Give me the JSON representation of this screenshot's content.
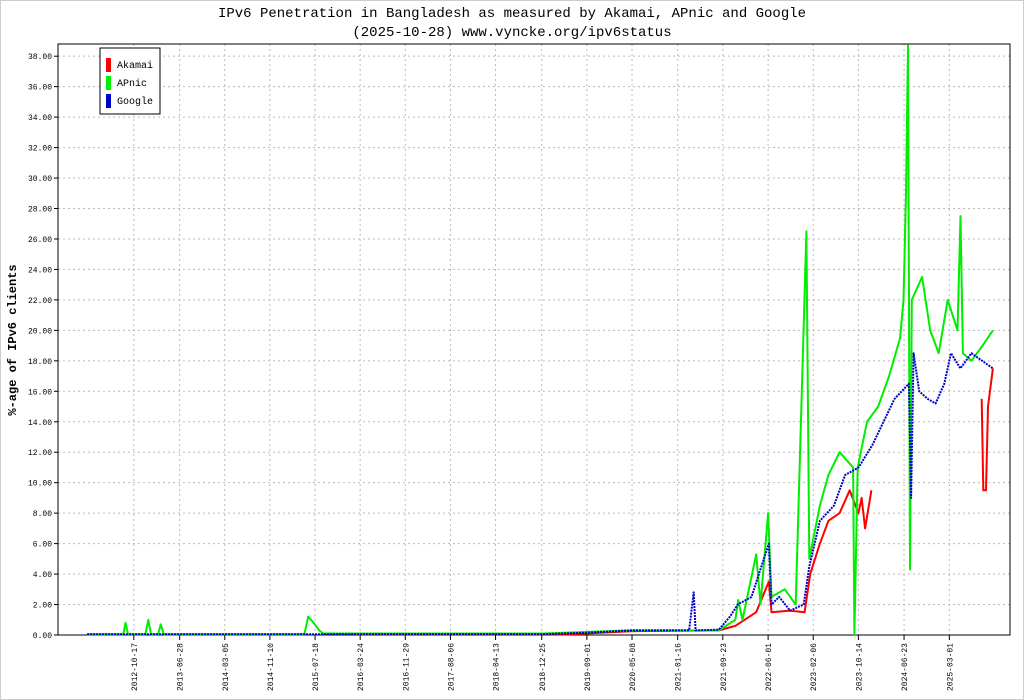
{
  "chart_data": {
    "type": "line",
    "title": "IPv6 Penetration in Bangladesh as measured by Akamai, APnic and Google",
    "subtitle": "(2025-10-28) www.vyncke.org/ipv6status",
    "y_label": "%-age of IPv6 clients",
    "grid": true,
    "legend": "top-left",
    "xlim": [
      "2011-08-24",
      "2026-01-31"
    ],
    "xticks": [
      "2012-10-17",
      "2013-06-28",
      "2014-03-05",
      "2014-11-10",
      "2015-07-18",
      "2016-03-24",
      "2016-11-29",
      "2017-08-06",
      "2018-04-13",
      "2018-12-25",
      "2019-09-01",
      "2020-05-08",
      "2021-01-16",
      "2021-09-23",
      "2022-06-01",
      "2023-02-06",
      "2023-10-14",
      "2024-06-23",
      "2025-03-01"
    ],
    "ylim": [
      0,
      38.8
    ],
    "yticks": [
      {
        "value": 0,
        "label": "0.00"
      },
      {
        "value": 2,
        "label": "2.00"
      },
      {
        "value": 4,
        "label": "4.00"
      },
      {
        "value": 6,
        "label": "6.00"
      },
      {
        "value": 8,
        "label": "8.00"
      },
      {
        "value": 10,
        "label": "10.00"
      },
      {
        "value": 12,
        "label": "12.00"
      },
      {
        "value": 14,
        "label": "14.00"
      },
      {
        "value": 16,
        "label": "16.00"
      },
      {
        "value": 18,
        "label": "18.00"
      },
      {
        "value": 20,
        "label": "20.00"
      },
      {
        "value": 22,
        "label": "22.00"
      },
      {
        "value": 24,
        "label": "24.00"
      },
      {
        "value": 26,
        "label": "26.00"
      },
      {
        "value": 28,
        "label": "28.00"
      },
      {
        "value": 30,
        "label": "30.00"
      },
      {
        "value": 32,
        "label": "32.00"
      },
      {
        "value": 34,
        "label": "34.00"
      },
      {
        "value": 36,
        "label": "36.00"
      },
      {
        "value": 38,
        "label": "38.00"
      }
    ],
    "series": [
      {
        "name": "Akamai",
        "color": "#ff0000",
        "dashed": false,
        "x": [
          "2016-03-01",
          "2019-06-01",
          "2020-05-01",
          "2021-09-01",
          "2021-12-01",
          "2022-03-27",
          "2022-06-05",
          "2022-06-20",
          "2022-10-01",
          "2022-12-20",
          "2023-01-20",
          "2023-03-15",
          "2023-05-01",
          "2023-07-02",
          "2023-08-27",
          "2023-10-14",
          "2023-11-01",
          "2023-11-20",
          "2023-12-25",
          "2024-06-01",
          "2025-08-27",
          "2025-09-05",
          "2025-09-20",
          "2025-10-01",
          "2025-10-28"
        ],
        "values": [
          0.05,
          0.05,
          0.25,
          0.3,
          0.6,
          1.5,
          3.5,
          1.5,
          1.6,
          1.5,
          4.0,
          6.0,
          7.5,
          8.0,
          9.5,
          8.0,
          9.0,
          7.0,
          9.5,
          null,
          15.5,
          9.5,
          9.5,
          15.0,
          17.5
        ]
      },
      {
        "name": "APnic",
        "color": "#00ee00",
        "dashed": false,
        "x": [
          "2012-02-01",
          "2012-08-20",
          "2012-09-01",
          "2012-09-15",
          "2012-12-20",
          "2013-01-05",
          "2013-01-20",
          "2013-03-01",
          "2013-03-15",
          "2013-04-01",
          "2015-05-20",
          "2015-06-10",
          "2015-07-10",
          "2015-08-10",
          "2015-09-01",
          "2019-01-01",
          "2020-05-01",
          "2021-09-01",
          "2021-12-01",
          "2021-12-17",
          "2022-01-10",
          "2022-03-27",
          "2022-04-20",
          "2022-06-01",
          "2022-06-20",
          "2022-09-01",
          "2022-11-01",
          "2022-12-30",
          "2023-01-15",
          "2023-03-15",
          "2023-05-01",
          "2023-07-02",
          "2023-09-15",
          "2023-09-22",
          "2023-10-10",
          "2023-12-01",
          "2024-02-01",
          "2024-04-01",
          "2024-06-01",
          "2024-06-20",
          "2024-07-04",
          "2024-07-15",
          "2024-07-26",
          "2024-08-05",
          "2024-10-01",
          "2024-11-15",
          "2025-01-01",
          "2025-02-20",
          "2025-04-15",
          "2025-05-02",
          "2025-05-15",
          "2025-07-01",
          "2025-09-01",
          "2025-10-28"
        ],
        "values": [
          0.05,
          0.05,
          0.8,
          0.05,
          0.05,
          1.0,
          0.05,
          0.05,
          0.7,
          0.05,
          0.05,
          1.2,
          0.8,
          0.3,
          0.1,
          0.1,
          0.3,
          0.3,
          1.0,
          2.3,
          1.0,
          5.3,
          2.0,
          8.0,
          2.5,
          3.0,
          2.0,
          26.5,
          5.0,
          8.5,
          10.5,
          12.0,
          11.0,
          0,
          11.0,
          14.0,
          15.0,
          17.0,
          19.5,
          22.0,
          29.0,
          38.7,
          4.3,
          22.0,
          23.5,
          20.0,
          18.5,
          22.0,
          20.0,
          27.5,
          18.5,
          18.0,
          19.0,
          20.0
        ]
      },
      {
        "name": "Google",
        "color": "#0000cc",
        "dashed": true,
        "x": [
          "2012-02-01",
          "2015-06-01",
          "2019-01-01",
          "2019-09-01",
          "2020-05-01",
          "2021-03-20",
          "2021-04-15",
          "2021-04-25",
          "2021-09-01",
          "2021-11-01",
          "2021-12-15",
          "2022-03-01",
          "2022-06-05",
          "2022-06-20",
          "2022-08-01",
          "2022-10-01",
          "2022-12-15",
          "2023-01-15",
          "2023-03-15",
          "2023-06-01",
          "2023-08-01",
          "2023-10-15",
          "2024-01-01",
          "2024-03-01",
          "2024-05-01",
          "2024-07-20",
          "2024-08-01",
          "2024-08-15",
          "2024-09-15",
          "2024-11-01",
          "2024-12-15",
          "2025-02-01",
          "2025-03-10",
          "2025-05-01",
          "2025-07-01",
          "2025-10-28"
        ],
        "values": [
          0.05,
          0.05,
          0.05,
          0.15,
          0.3,
          0.3,
          2.8,
          0.3,
          0.35,
          1.2,
          2.0,
          2.5,
          6.0,
          2.0,
          2.5,
          1.6,
          2.0,
          4.5,
          7.5,
          8.5,
          10.5,
          11.0,
          12.5,
          14.0,
          15.5,
          16.5,
          9.0,
          18.5,
          16.0,
          15.5,
          15.2,
          16.5,
          18.5,
          17.5,
          18.5,
          17.5
        ]
      }
    ]
  }
}
